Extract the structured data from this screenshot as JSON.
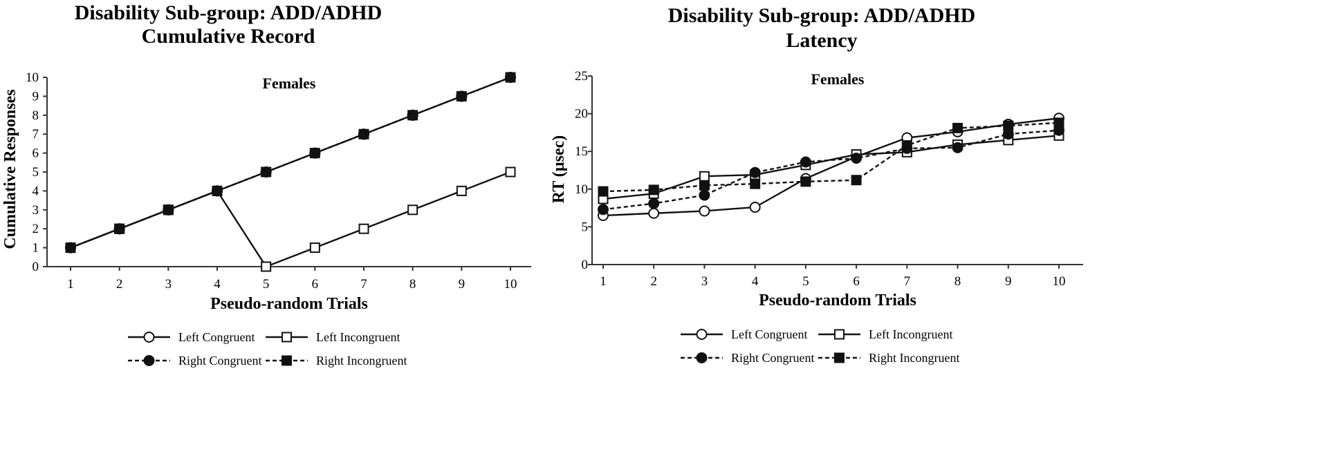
{
  "chart_data": [
    {
      "type": "line",
      "title": [
        "Disability Sub-group: ADD/ADHD",
        "Cumulative Record"
      ],
      "subtitle": "Females",
      "xlabel": "Pseudo-random Trials",
      "ylabel": "Cumulative Responses",
      "x": [
        1,
        2,
        3,
        4,
        5,
        6,
        7,
        8,
        9,
        10
      ],
      "ylim": [
        0,
        10
      ],
      "yticks": [
        0,
        1,
        2,
        3,
        4,
        5,
        6,
        7,
        8,
        9,
        10
      ],
      "grid": false,
      "series": [
        {
          "name": "Left Congruent",
          "style": "solid",
          "marker": "circle-open",
          "values": [
            1,
            2,
            3,
            4,
            5,
            6,
            7,
            8,
            9,
            10
          ]
        },
        {
          "name": "Left Incongruent",
          "style": "solid",
          "marker": "square-open",
          "values": [
            1,
            2,
            3,
            4,
            0,
            1,
            2,
            3,
            4,
            5
          ]
        },
        {
          "name": "Right Congruent",
          "style": "dashed",
          "marker": "circle-filled",
          "values": [
            1,
            2,
            3,
            4,
            5,
            6,
            7,
            8,
            9,
            10
          ]
        },
        {
          "name": "Right Incongruent",
          "style": "dashed",
          "marker": "square-filled",
          "values": [
            1,
            2,
            3,
            4,
            5,
            6,
            7,
            8,
            9,
            10
          ]
        }
      ]
    },
    {
      "type": "line",
      "title": [
        "Disability Sub-group: ADD/ADHD",
        "Latency"
      ],
      "subtitle": "Females",
      "xlabel": "Pseudo-random Trials",
      "ylabel": "RT (µsec)",
      "x": [
        1,
        2,
        3,
        4,
        5,
        6,
        7,
        8,
        9,
        10
      ],
      "ylim": [
        0,
        25
      ],
      "yticks": [
        0,
        5,
        10,
        15,
        20,
        25
      ],
      "grid": false,
      "series": [
        {
          "name": "Left Congruent",
          "style": "solid",
          "marker": "circle-open",
          "values": [
            6.5,
            6.8,
            7.1,
            7.6,
            11.4,
            14.3,
            16.8,
            17.6,
            18.6,
            19.4
          ]
        },
        {
          "name": "Left Incongruent",
          "style": "solid",
          "marker": "square-open",
          "values": [
            8.7,
            9.4,
            11.7,
            11.9,
            13.2,
            14.6,
            14.9,
            15.9,
            16.5,
            17.1
          ]
        },
        {
          "name": "Right Congruent",
          "style": "dashed",
          "marker": "circle-filled",
          "values": [
            7.3,
            8.1,
            9.2,
            12.2,
            13.6,
            14.1,
            15.4,
            15.5,
            17.3,
            17.8
          ]
        },
        {
          "name": "Right Incongruent",
          "style": "dashed",
          "marker": "square-filled",
          "values": [
            9.7,
            9.9,
            10.5,
            10.7,
            11.0,
            11.2,
            15.8,
            18.1,
            18.4,
            18.8
          ]
        }
      ]
    }
  ],
  "colors": {
    "line": "#111111",
    "axis": "#333333",
    "fill_open": "#ffffff",
    "fill_filled": "#111111"
  }
}
